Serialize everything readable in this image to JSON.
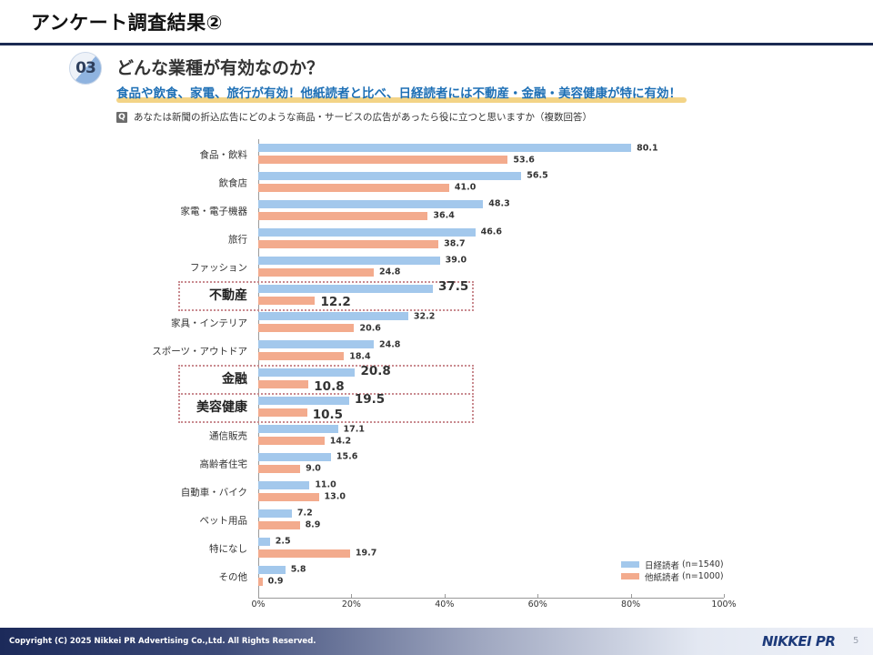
{
  "slide": {
    "title": "アンケート調査結果②",
    "badge_number": "03",
    "headline": "どんな業種が有効なのか？",
    "subline": "食品や飲食、家電、旅行が有効！他紙読者と比べ、日経読者には不動産・金融・美容健康が特に有効！",
    "question_icon": "Q",
    "question": "あなたは新聞の折込広告にどのような商品・サービスの広告があったら役に立つと思いますか（複数回答）"
  },
  "footer": {
    "copyright": "Copyright (C) 2025 Nikkei PR Advertising Co.,Ltd. All Rights Reserved.",
    "brand": "NIKKEI PR",
    "page_number": "5"
  },
  "chart_data": {
    "type": "bar",
    "orientation": "horizontal",
    "title": "あなたは新聞の折込広告にどのような商品・サービスの広告があったら役に立つと思いますか（複数回答）",
    "xlabel": "",
    "ylabel": "",
    "xlim": [
      0,
      100
    ],
    "x_ticks": [
      "0%",
      "20%",
      "40%",
      "60%",
      "80%",
      "100%"
    ],
    "grid": false,
    "legend_position": "bottom-right",
    "categories": [
      "食品・飲料",
      "飲食店",
      "家電・電子機器",
      "旅行",
      "ファッション",
      "不動産",
      "家具・インテリア",
      "スポーツ・アウトドア",
      "金融",
      "美容健康",
      "通信販売",
      "高齢者住宅",
      "自動車・バイク",
      "ペット用品",
      "特になし",
      "その他"
    ],
    "highlighted_categories": [
      "不動産",
      "金融",
      "美容健康"
    ],
    "series": [
      {
        "name": "日経読者",
        "n_label": "(n=1540)",
        "color": "#a3c8ec",
        "values": [
          80.1,
          56.5,
          48.3,
          46.6,
          39.0,
          37.5,
          32.2,
          24.8,
          20.8,
          19.5,
          17.1,
          15.6,
          11.0,
          7.2,
          2.5,
          5.8
        ]
      },
      {
        "name": "他紙読者",
        "n_label": "(n=1000)",
        "color": "#f3ab8d",
        "values": [
          53.6,
          41.0,
          36.4,
          38.7,
          24.8,
          12.2,
          20.6,
          18.4,
          10.8,
          10.5,
          14.2,
          9.0,
          13.0,
          8.9,
          19.7,
          0.9
        ]
      }
    ]
  }
}
